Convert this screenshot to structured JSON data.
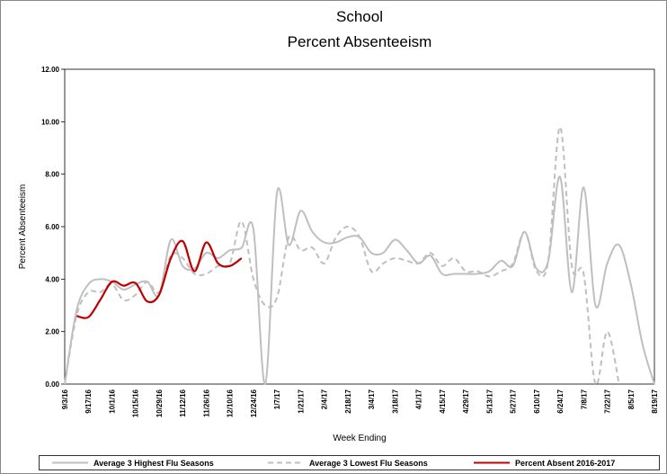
{
  "chart_data": {
    "type": "line",
    "title": [
      "School",
      "Percent Absenteeism"
    ],
    "y_label": "Percent Absenteeism",
    "x_label": "Week Ending",
    "categories": [
      "9/3/16",
      null,
      "9/17/16",
      null,
      "10/1/16",
      null,
      "10/15/16",
      null,
      "10/29/16",
      null,
      "11/12/16",
      null,
      "11/26/16",
      null,
      "12/10/16",
      null,
      "12/24/16",
      null,
      "1/7/17",
      null,
      "1/21/17",
      null,
      "2/4/17",
      null,
      "2/18/17",
      null,
      "3/4/17",
      null,
      "3/18/17",
      null,
      "4/1/17",
      null,
      "4/15/17",
      null,
      "4/29/17",
      null,
      "5/13/17",
      null,
      "5/27/17",
      null,
      "6/10/17",
      null,
      "6/24/17",
      null,
      "7/8/17",
      null,
      "7/22/17",
      null,
      "8/5/17",
      null,
      "8/19/17"
    ],
    "ylim": [
      0,
      12
    ],
    "yticks": [
      {
        "value": 0,
        "label": "0.00"
      },
      {
        "value": 2,
        "label": "2.00"
      },
      {
        "value": 4,
        "label": "4.00"
      },
      {
        "value": 6,
        "label": "6.00"
      },
      {
        "value": 8,
        "label": "8.00"
      },
      {
        "value": 10,
        "label": "10.00"
      },
      {
        "value": 12,
        "label": "12.00"
      }
    ],
    "legend": "bottom",
    "series": [
      {
        "name": "Average 3 Highest Flu Seasons",
        "color": "#bfbfbf",
        "dash": false,
        "values": [
          0,
          2.8,
          3.8,
          4.0,
          3.9,
          3.6,
          3.8,
          3.9,
          3.4,
          5.5,
          4.5,
          4.4,
          5.0,
          4.8,
          5.1,
          5.2,
          5.9,
          0,
          7.3,
          5.3,
          6.6,
          5.8,
          5.4,
          5.4,
          5.6,
          5.6,
          5.0,
          5.0,
          5.5,
          5.1,
          4.6,
          4.9,
          4.2,
          4.2,
          4.2,
          4.2,
          4.3,
          4.7,
          4.5,
          5.8,
          4.4,
          4.7,
          7.9,
          3.5,
          7.5,
          3.0,
          4.6,
          5.3,
          3.8,
          1.5,
          0
        ]
      },
      {
        "name": "Average 3 Lowest Flu Seasons",
        "color": "#bfbfbf",
        "dash": true,
        "values": [
          0,
          2.6,
          3.5,
          3.5,
          3.8,
          3.2,
          3.4,
          3.9,
          3.5,
          4.9,
          4.8,
          4.2,
          4.2,
          4.5,
          4.6,
          6.2,
          4.0,
          3.0,
          3.3,
          5.6,
          5.1,
          5.2,
          4.6,
          5.6,
          6.0,
          5.6,
          4.3,
          4.6,
          4.8,
          4.7,
          4.6,
          5.0,
          4.5,
          4.8,
          4.3,
          4.3,
          4.1,
          4.3,
          4.6,
          5.8,
          4.3,
          4.7,
          9.8,
          4.5,
          4.2,
          0,
          2.0,
          0,
          null,
          null,
          null
        ]
      },
      {
        "name": "Percent Absent 2016-2017",
        "color": "#c00000",
        "dash": false,
        "values": [
          null,
          2.6,
          2.55,
          3.2,
          3.9,
          3.75,
          3.85,
          3.15,
          3.4,
          4.8,
          5.45,
          4.3,
          5.4,
          4.6,
          4.5,
          4.8,
          null,
          null,
          null,
          null,
          null,
          null,
          null,
          null,
          null,
          null,
          null,
          null,
          null,
          null,
          null,
          null,
          null,
          null,
          null,
          null,
          null,
          null,
          null,
          null,
          null,
          null,
          null,
          null,
          null,
          null,
          null,
          null,
          null,
          null,
          null
        ]
      }
    ]
  }
}
